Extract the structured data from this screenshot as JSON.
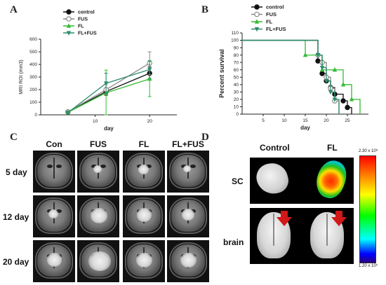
{
  "panels": {
    "a": "A",
    "b": "B",
    "c": "C",
    "d": "D"
  },
  "chart_data": [
    {
      "type": "line",
      "ylabel": "MRI ROI (mm3)",
      "xlabel": "day",
      "x": [
        5,
        12,
        20
      ],
      "xlim": [
        0,
        25
      ],
      "ylim": [
        0,
        600
      ],
      "xticks": [
        10,
        20
      ],
      "yticks": [
        0,
        100,
        200,
        300,
        400,
        500,
        600
      ],
      "legend_position": "top-center",
      "series": [
        {
          "name": "control",
          "color": "#111111",
          "marker": "circle-filled",
          "values": [
            22,
            185,
            330
          ],
          "errors": [
            5,
            30,
            50
          ]
        },
        {
          "name": "FUS",
          "color": "#888888",
          "marker": "circle-open",
          "values": [
            24,
            200,
            410
          ],
          "errors": [
            5,
            40,
            90
          ]
        },
        {
          "name": "FL",
          "color": "#33bb33",
          "marker": "triangle-up",
          "values": [
            20,
            175,
            285
          ],
          "errors": [
            5,
            180,
            140
          ]
        },
        {
          "name": "FL+FUS",
          "color": "#2e8b6e",
          "marker": "triangle-down",
          "values": [
            18,
            250,
            360
          ],
          "errors": [
            5,
            80,
            70
          ]
        }
      ]
    },
    {
      "type": "line",
      "step": true,
      "ylabel": "Percent survival",
      "xlabel": "day",
      "xlim": [
        0,
        30
      ],
      "ylim": [
        0,
        110
      ],
      "xticks": [
        5,
        10,
        15,
        20,
        25
      ],
      "yticks": [
        0,
        10,
        20,
        30,
        40,
        50,
        60,
        70,
        80,
        90,
        100,
        110
      ],
      "legend_position": "top-center",
      "series": [
        {
          "name": "control",
          "color": "#111111",
          "marker": "circle-filled",
          "x": [
            0,
            18,
            19,
            20,
            21,
            22,
            24,
            25,
            26
          ],
          "values": [
            100,
            72,
            55,
            45,
            36,
            27,
            18,
            9,
            0
          ]
        },
        {
          "name": "FUS",
          "color": "#888888",
          "marker": "circle-open",
          "x": [
            0,
            18,
            19,
            20,
            21,
            22,
            23
          ],
          "values": [
            100,
            80,
            70,
            50,
            35,
            18,
            0
          ]
        },
        {
          "name": "FL",
          "color": "#33bb33",
          "marker": "triangle-up",
          "x": [
            0,
            15,
            19,
            22,
            24,
            26,
            28
          ],
          "values": [
            100,
            80,
            60,
            60,
            40,
            20,
            0
          ]
        },
        {
          "name": "FL+FUS",
          "color": "#2e8b6e",
          "marker": "triangle-down",
          "x": [
            0,
            18,
            19,
            20,
            21,
            22,
            23
          ],
          "values": [
            100,
            80,
            63,
            45,
            30,
            20,
            0
          ]
        }
      ]
    }
  ],
  "mri": {
    "columns": [
      "Con",
      "FUS",
      "FL",
      "FL+FUS"
    ],
    "rows": [
      "5 day",
      "12 day",
      "20 day"
    ],
    "lesion": [
      [
        0,
        0.15,
        0.25,
        0.1
      ],
      [
        0.2,
        0.55,
        0.45,
        0.35
      ],
      [
        0.45,
        0.8,
        0.5,
        0.5
      ]
    ]
  },
  "imaging": {
    "columns": [
      "Control",
      "FL"
    ],
    "rows": [
      "SC",
      "brain"
    ],
    "scale_max": "2.30 x 10⁸",
    "scale_min": "1.20 x 10⁵"
  }
}
